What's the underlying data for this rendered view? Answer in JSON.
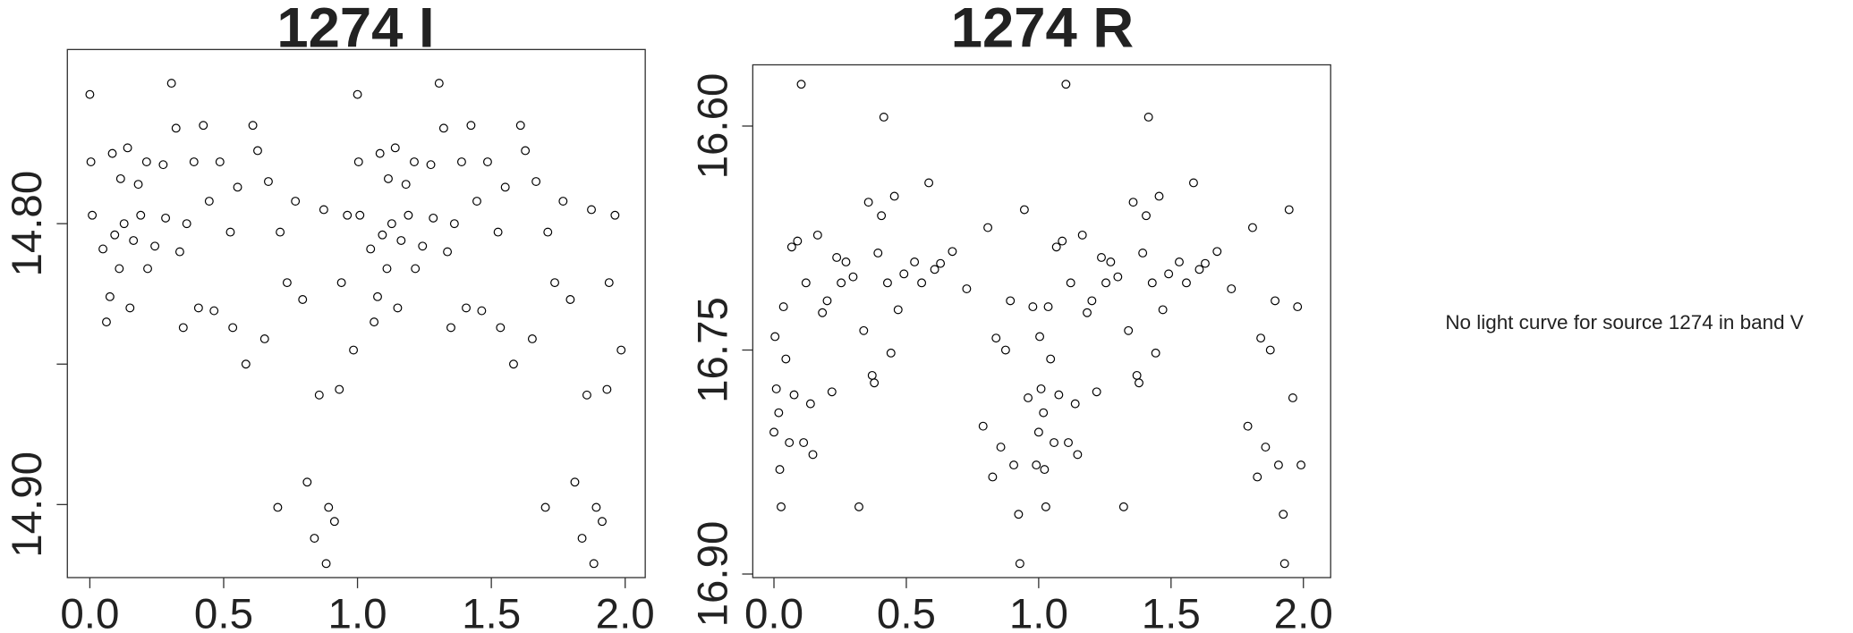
{
  "chart_data": [
    {
      "type": "scatter",
      "title": "1274 I",
      "xlim": [
        -0.084,
        2.075
      ],
      "xticks": [
        {
          "value": 0,
          "label": "0.0"
        },
        {
          "value": 0.5,
          "label": "0.5"
        },
        {
          "value": 1,
          "label": "1.0"
        },
        {
          "value": 1.5,
          "label": "1.5"
        },
        {
          "value": 2,
          "label": "2.0"
        }
      ],
      "ylim": [
        14.926,
        14.738
      ],
      "yticks": [
        {
          "value": 14.8,
          "label": "14.80"
        },
        {
          "value": 14.85,
          "label": null
        },
        {
          "value": 14.9,
          "label": "14.90"
        }
      ],
      "color": "#000000",
      "x": [
        0,
        0.004,
        0.009,
        0.049,
        0.062,
        0.075,
        0.084,
        0.093,
        0.11,
        0.115,
        0.128,
        0.141,
        0.15,
        0.163,
        0.181,
        0.19,
        0.212,
        0.216,
        0.243,
        0.274,
        0.283,
        0.305,
        0.322,
        0.336,
        0.349,
        0.362,
        0.389,
        0.406,
        0.424,
        0.446,
        0.464,
        0.486,
        0.525,
        0.534,
        0.552,
        0.583,
        0.609,
        0.627,
        0.653,
        0.667,
        0.702,
        0.711,
        0.737,
        0.768,
        0.795,
        0.812,
        0.839,
        0.857,
        0.874,
        0.883,
        0.892,
        0.914,
        0.932,
        0.94,
        0.962,
        0.985,
        1,
        1.004,
        1.009,
        1.049,
        1.062,
        1.075,
        1.084,
        1.093,
        1.11,
        1.115,
        1.128,
        1.141,
        1.15,
        1.163,
        1.181,
        1.19,
        1.212,
        1.216,
        1.243,
        1.274,
        1.283,
        1.305,
        1.322,
        1.336,
        1.349,
        1.362,
        1.389,
        1.406,
        1.424,
        1.446,
        1.464,
        1.486,
        1.525,
        1.534,
        1.552,
        1.583,
        1.609,
        1.627,
        1.653,
        1.667,
        1.702,
        1.711,
        1.737,
        1.768,
        1.795,
        1.812,
        1.839,
        1.857,
        1.874,
        1.883,
        1.892,
        1.914,
        1.932,
        1.94,
        1.962,
        1.985
      ],
      "values": [
        14.754,
        14.778,
        14.797,
        14.809,
        14.835,
        14.826,
        14.775,
        14.804,
        14.816,
        14.784,
        14.8,
        14.773,
        14.83,
        14.806,
        14.786,
        14.797,
        14.778,
        14.816,
        14.808,
        14.779,
        14.798,
        14.75,
        14.766,
        14.81,
        14.837,
        14.8,
        14.778,
        14.83,
        14.765,
        14.792,
        14.831,
        14.778,
        14.803,
        14.837,
        14.787,
        14.85,
        14.765,
        14.774,
        14.841,
        14.785,
        14.901,
        14.803,
        14.821,
        14.792,
        14.827,
        14.892,
        14.912,
        14.861,
        14.795,
        14.921,
        14.901,
        14.906,
        14.859,
        14.821,
        14.797,
        14.845,
        14.754,
        14.778,
        14.797,
        14.809,
        14.835,
        14.826,
        14.775,
        14.804,
        14.816,
        14.784,
        14.8,
        14.773,
        14.83,
        14.806,
        14.786,
        14.797,
        14.778,
        14.816,
        14.808,
        14.779,
        14.798,
        14.75,
        14.766,
        14.81,
        14.837,
        14.8,
        14.778,
        14.83,
        14.765,
        14.792,
        14.831,
        14.778,
        14.803,
        14.837,
        14.787,
        14.85,
        14.765,
        14.774,
        14.841,
        14.785,
        14.901,
        14.803,
        14.821,
        14.792,
        14.827,
        14.892,
        14.912,
        14.861,
        14.795,
        14.921,
        14.901,
        14.906,
        14.859,
        14.821,
        14.797,
        14.845
      ]
    },
    {
      "type": "scatter",
      "title": "1274 R",
      "xlim": [
        -0.08,
        2.103
      ],
      "xticks": [
        {
          "value": 0,
          "label": "0.0"
        },
        {
          "value": 0.5,
          "label": "0.5"
        },
        {
          "value": 1,
          "label": "1.0"
        },
        {
          "value": 1.5,
          "label": "1.5"
        },
        {
          "value": 2,
          "label": "2.0"
        }
      ],
      "ylim": [
        16.9024,
        16.559
      ],
      "yticks": [
        {
          "value": 16.6,
          "label": "16.60"
        },
        {
          "value": 16.75,
          "label": "16.75"
        },
        {
          "value": 16.9,
          "label": "16.90"
        }
      ],
      "color": "#000000",
      "x": [
        0,
        0.004,
        0.009,
        0.018,
        0.022,
        0.027,
        0.036,
        0.045,
        0.058,
        0.067,
        0.076,
        0.089,
        0.103,
        0.112,
        0.121,
        0.138,
        0.147,
        0.165,
        0.183,
        0.201,
        0.219,
        0.237,
        0.254,
        0.272,
        0.299,
        0.321,
        0.339,
        0.357,
        0.371,
        0.379,
        0.393,
        0.406,
        0.415,
        0.429,
        0.442,
        0.455,
        0.469,
        0.491,
        0.531,
        0.558,
        0.585,
        0.607,
        0.629,
        0.674,
        0.728,
        0.79,
        0.808,
        0.826,
        0.839,
        0.857,
        0.875,
        0.893,
        0.906,
        0.924,
        0.929,
        0.946,
        0.96,
        0.978,
        0.991,
        1,
        1.004,
        1.009,
        1.018,
        1.022,
        1.027,
        1.036,
        1.045,
        1.058,
        1.067,
        1.076,
        1.089,
        1.103,
        1.112,
        1.121,
        1.138,
        1.147,
        1.165,
        1.183,
        1.201,
        1.219,
        1.237,
        1.254,
        1.272,
        1.299,
        1.321,
        1.339,
        1.357,
        1.371,
        1.379,
        1.393,
        1.406,
        1.415,
        1.429,
        1.442,
        1.455,
        1.469,
        1.491,
        1.531,
        1.558,
        1.585,
        1.607,
        1.629,
        1.674,
        1.728,
        1.79,
        1.808,
        1.826,
        1.839,
        1.857,
        1.875,
        1.893,
        1.906,
        1.924,
        1.929,
        1.946,
        1.96,
        1.978,
        1.991
      ],
      "values": [
        16.805,
        16.741,
        16.776,
        16.792,
        16.83,
        16.855,
        16.721,
        16.756,
        16.812,
        16.681,
        16.78,
        16.677,
        16.572,
        16.812,
        16.705,
        16.786,
        16.82,
        16.673,
        16.725,
        16.717,
        16.778,
        16.688,
        16.705,
        16.691,
        16.701,
        16.855,
        16.737,
        16.651,
        16.767,
        16.772,
        16.685,
        16.66,
        16.594,
        16.705,
        16.752,
        16.647,
        16.723,
        16.699,
        16.691,
        16.705,
        16.638,
        16.696,
        16.692,
        16.684,
        16.709,
        16.801,
        16.668,
        16.835,
        16.742,
        16.815,
        16.75,
        16.717,
        16.827,
        16.86,
        16.893,
        16.656,
        16.782,
        16.721,
        16.827,
        16.805,
        16.741,
        16.776,
        16.792,
        16.83,
        16.855,
        16.721,
        16.756,
        16.812,
        16.681,
        16.78,
        16.677,
        16.572,
        16.812,
        16.705,
        16.786,
        16.82,
        16.673,
        16.725,
        16.717,
        16.778,
        16.688,
        16.705,
        16.691,
        16.701,
        16.855,
        16.737,
        16.651,
        16.767,
        16.772,
        16.685,
        16.66,
        16.594,
        16.705,
        16.752,
        16.647,
        16.723,
        16.699,
        16.691,
        16.705,
        16.638,
        16.696,
        16.692,
        16.684,
        16.709,
        16.801,
        16.668,
        16.835,
        16.742,
        16.815,
        16.75,
        16.717,
        16.827,
        16.86,
        16.893,
        16.656,
        16.782,
        16.721,
        16.827
      ]
    }
  ],
  "message": "No light curve for source 1274 in band V"
}
